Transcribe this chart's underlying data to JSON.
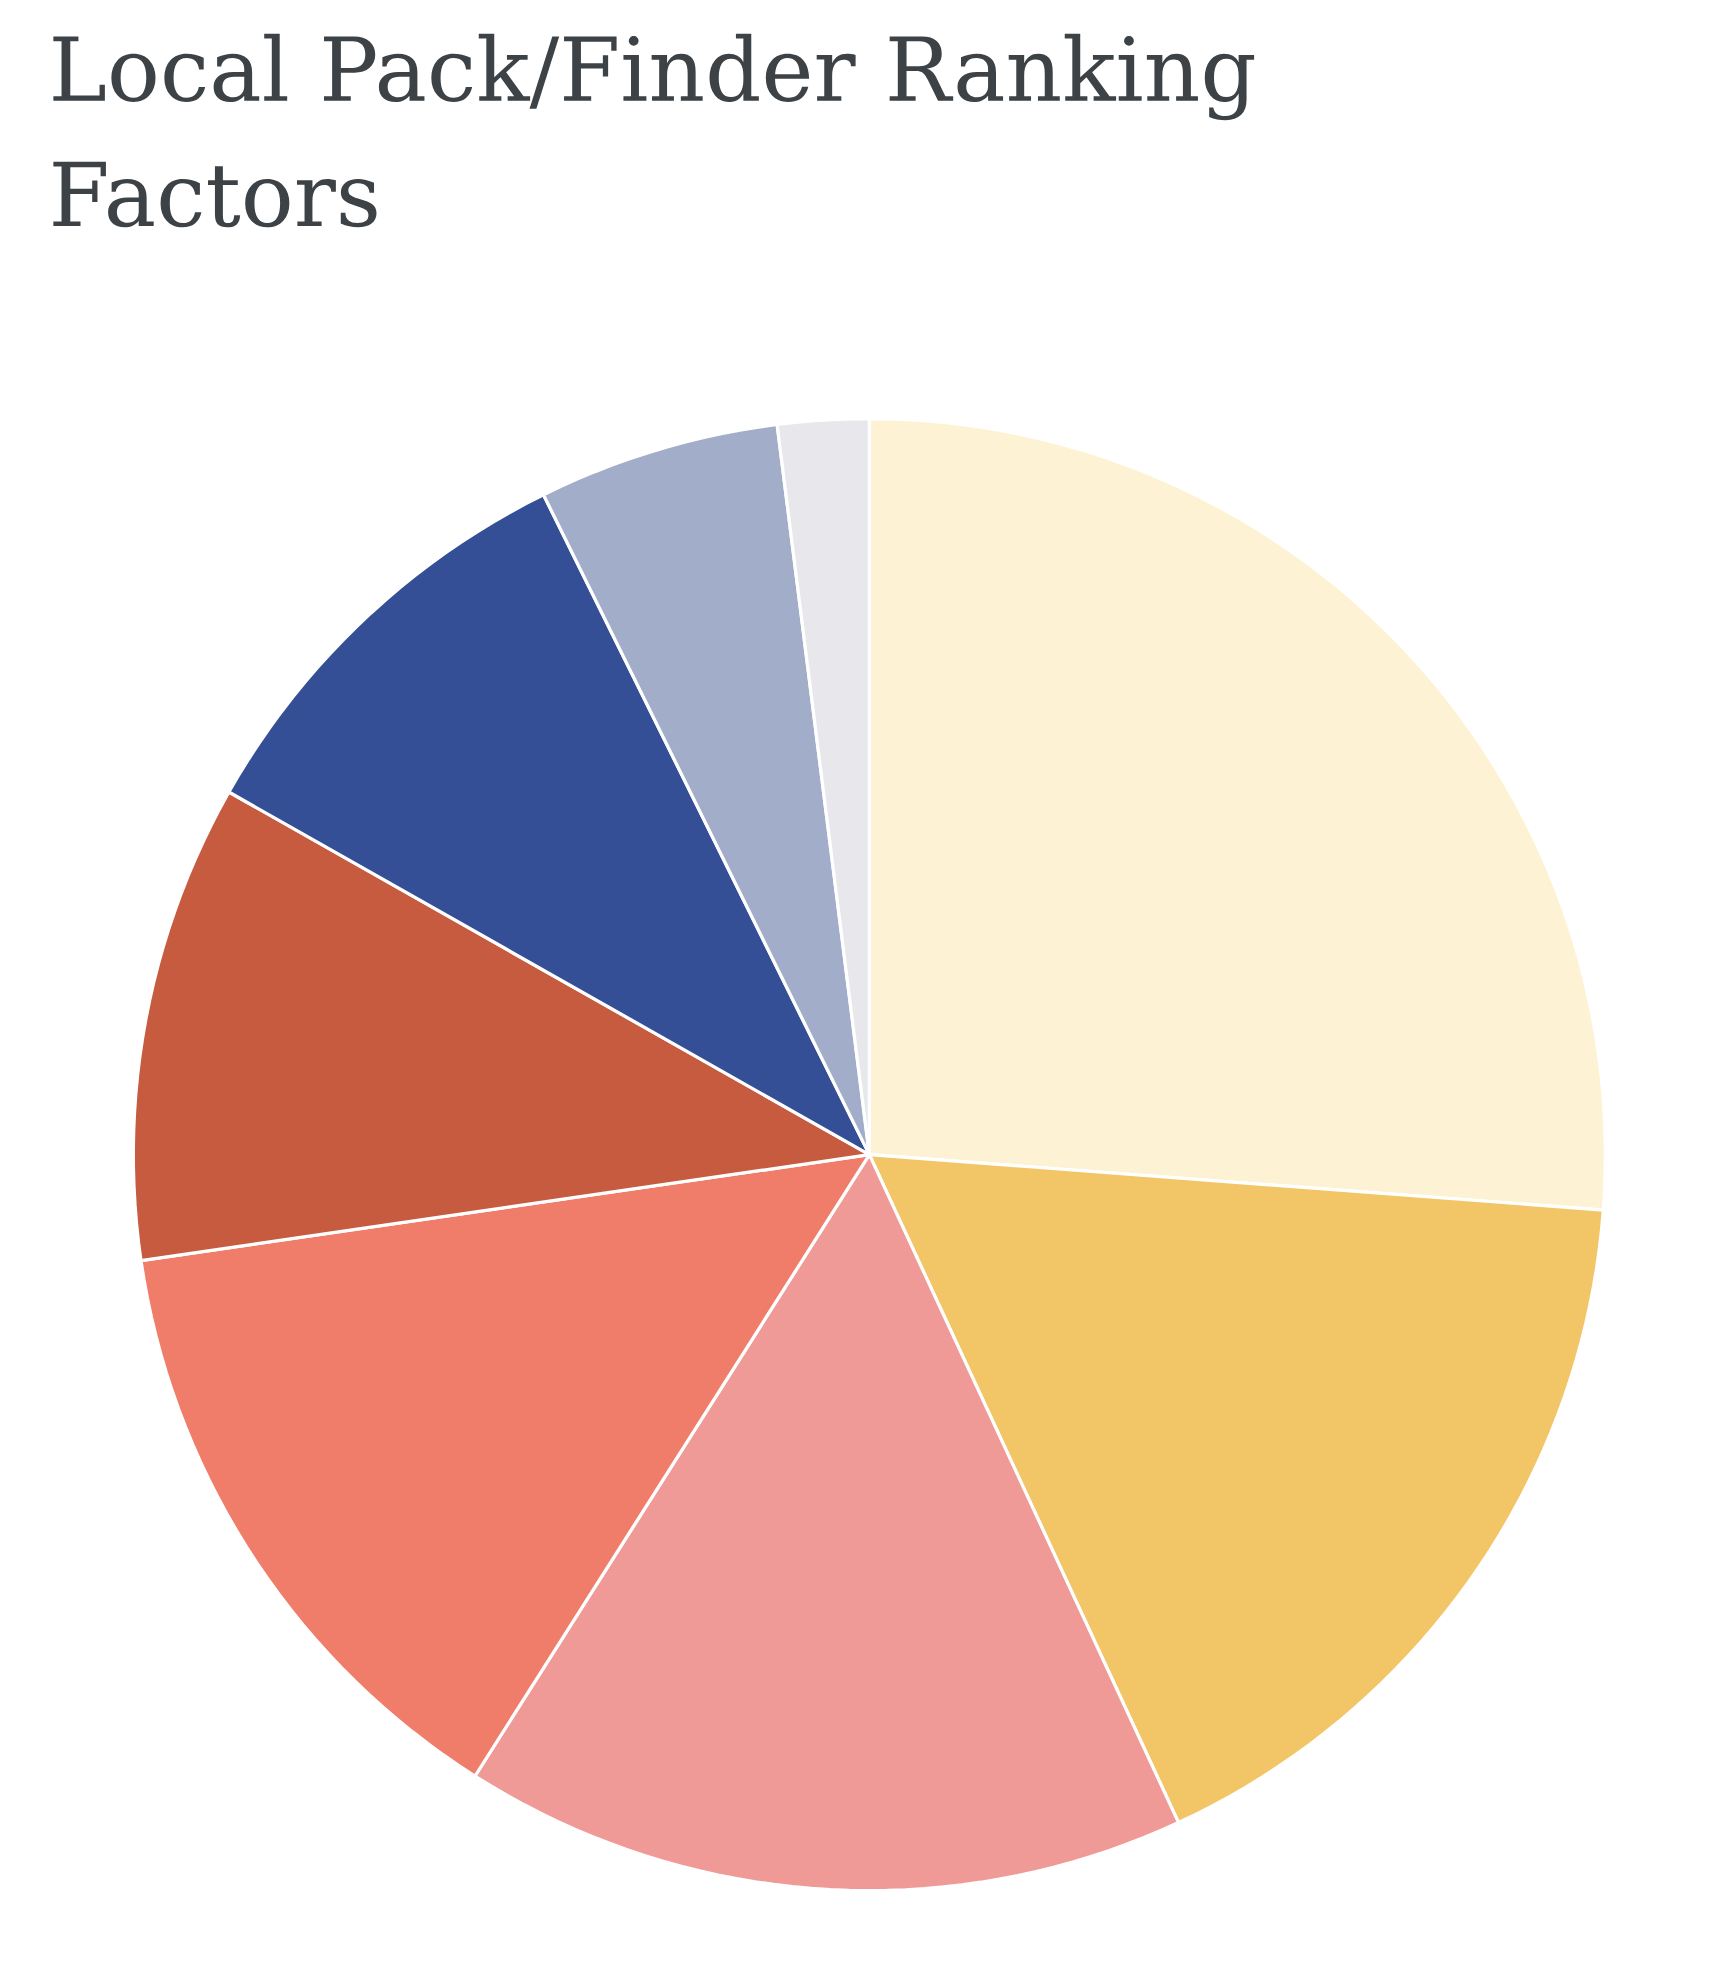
{
  "chart_data": {
    "type": "pie",
    "title": "Local Pack/Finder Ranking Factors",
    "categories": [
      null,
      null,
      null,
      null,
      null,
      null,
      null,
      null
    ],
    "values": [
      26.2,
      16.9,
      15.9,
      13.7,
      10.5,
      9.5,
      5.3,
      2.0
    ],
    "colors": [
      "#fdf3d4",
      "#f2c567",
      "#ef9a96",
      "#ef7d69",
      "#c75b40",
      "#344f96",
      "#a2aec9",
      "#e8e8ec"
    ]
  }
}
